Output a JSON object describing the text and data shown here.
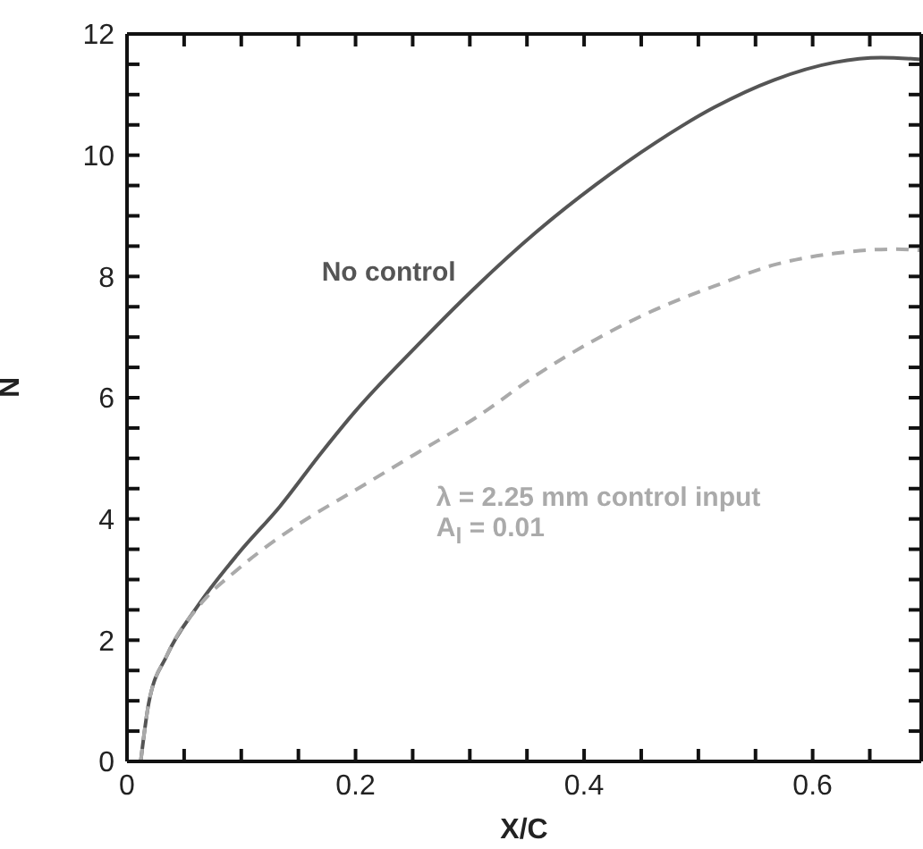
{
  "chart_data": {
    "type": "line",
    "xlabel": "X/C",
    "ylabel": "N",
    "xlim": [
      0,
      0.695
    ],
    "ylim": [
      0,
      12
    ],
    "xticks": [
      0,
      {
        "value": 0.05,
        "label": null
      },
      {
        "value": 0.1,
        "label": null
      },
      {
        "value": 0.15,
        "label": null
      },
      0.2,
      {
        "value": 0.25,
        "label": null
      },
      {
        "value": 0.3,
        "label": null
      },
      {
        "value": 0.35,
        "label": null
      },
      0.4,
      {
        "value": 0.45,
        "label": null
      },
      {
        "value": 0.5,
        "label": null
      },
      {
        "value": 0.55,
        "label": null
      },
      0.6,
      {
        "value": 0.65,
        "label": null
      }
    ],
    "yticks": [
      0,
      {
        "value": 0.5,
        "label": null
      },
      {
        "value": 1,
        "label": null
      },
      {
        "value": 1.5,
        "label": null
      },
      2,
      {
        "value": 2.5,
        "label": null
      },
      {
        "value": 3,
        "label": null
      },
      {
        "value": 3.5,
        "label": null
      },
      4,
      {
        "value": 4.5,
        "label": null
      },
      {
        "value": 5,
        "label": null
      },
      {
        "value": 5.5,
        "label": null
      },
      6,
      {
        "value": 6.5,
        "label": null
      },
      {
        "value": 7,
        "label": null
      },
      {
        "value": 7.5,
        "label": null
      },
      8,
      {
        "value": 8.5,
        "label": null
      },
      {
        "value": 9,
        "label": null
      },
      {
        "value": 9.5,
        "label": null
      },
      10,
      {
        "value": 10.5,
        "label": null
      },
      {
        "value": 11,
        "label": null
      },
      {
        "value": 11.5,
        "label": null
      },
      12
    ],
    "series": [
      {
        "name": "No control",
        "color": "#555555",
        "line_style": "solid",
        "x": [
          0.012,
          0.019,
          0.035,
          0.061,
          0.097,
          0.134,
          0.17,
          0.2,
          0.254,
          0.306,
          0.358,
          0.41,
          0.462,
          0.514,
          0.566,
          0.619,
          0.66,
          0.695
        ],
        "values": [
          0,
          0.96,
          1.75,
          2.54,
          3.42,
          4.21,
          5.09,
          5.78,
          6.86,
          7.84,
          8.73,
          9.51,
          10.2,
          10.79,
          11.24,
          11.53,
          11.61,
          11.58
        ]
      },
      {
        "name": "λ = 2.25 mm control input",
        "color": "#aaaaaa",
        "line_style": "dashed",
        "x": [
          0.012,
          0.019,
          0.035,
          0.066,
          0.097,
          0.15,
          0.202,
          0.254,
          0.306,
          0.358,
          0.41,
          0.462,
          0.514,
          0.566,
          0.619,
          0.671,
          0.695
        ],
        "values": [
          0,
          0.96,
          1.75,
          2.63,
          3.17,
          3.91,
          4.5,
          5.09,
          5.68,
          6.37,
          6.96,
          7.45,
          7.84,
          8.19,
          8.38,
          8.45,
          8.43
        ]
      }
    ],
    "annotations": [
      "A$_{l}$ = 0.01"
    ]
  }
}
